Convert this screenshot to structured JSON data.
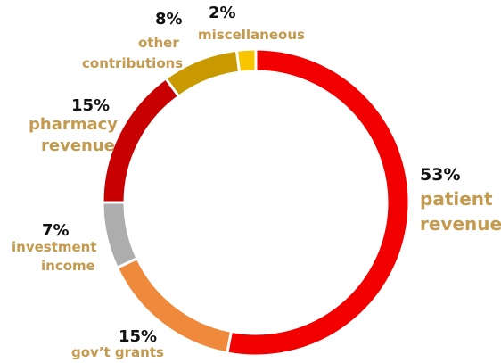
{
  "chart_data": {
    "type": "pie",
    "title": "",
    "slices": [
      {
        "label_lines": [
          "patient",
          "revenue"
        ],
        "percent_label": "53%",
        "value": 53,
        "color": "#f20000"
      },
      {
        "label_lines": [
          "gov’t grants"
        ],
        "percent_label": "15%",
        "value": 15,
        "color": "#ef8a3c"
      },
      {
        "label_lines": [
          "investment",
          "income"
        ],
        "percent_label": "7%",
        "value": 7,
        "color": "#adadad"
      },
      {
        "label_lines": [
          "pharmacy",
          "revenue"
        ],
        "percent_label": "15%",
        "value": 15,
        "color": "#c80000"
      },
      {
        "label_lines": [
          "other",
          "contributions"
        ],
        "percent_label": "8%",
        "value": 8,
        "color": "#c89a00"
      },
      {
        "label_lines": [
          "miscellaneous"
        ],
        "percent_label": "2%",
        "value": 2,
        "color": "#f7c600"
      }
    ]
  }
}
